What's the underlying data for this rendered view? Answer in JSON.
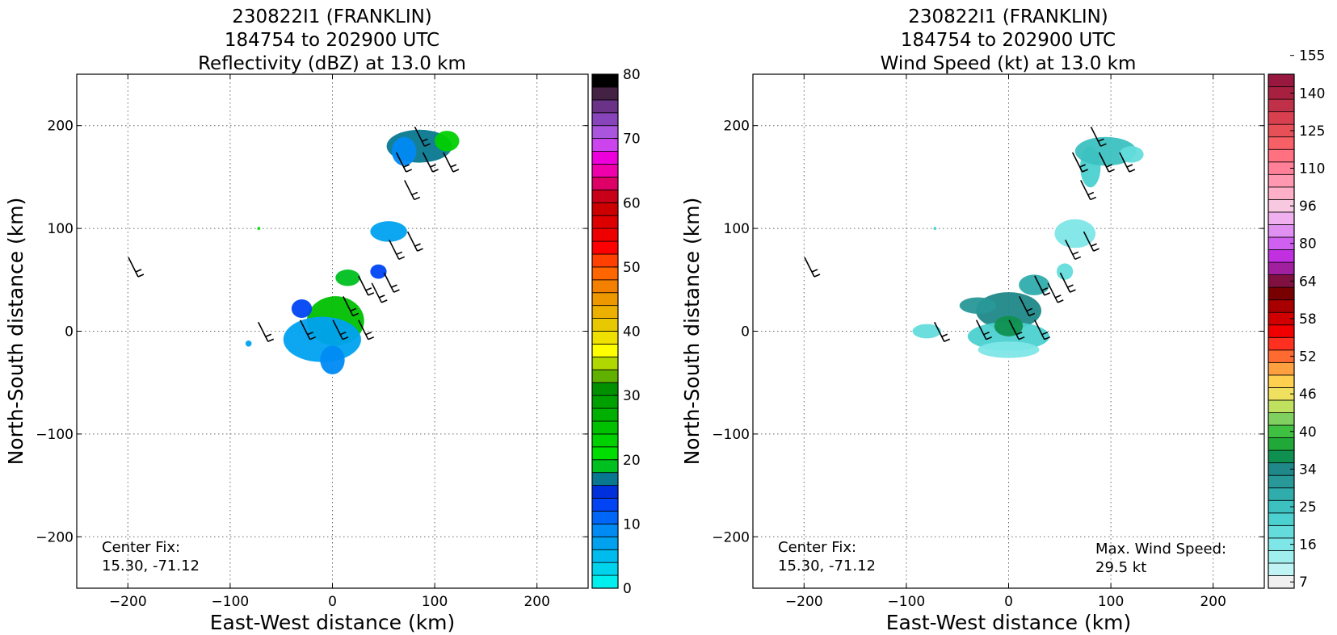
{
  "chart_data": [
    {
      "type": "heatmap",
      "title_lines": [
        "230822I1 (FRANKLIN)",
        "184754 to 202900 UTC",
        "Reflectivity (dBZ) at 13.0 km"
      ],
      "xlabel": "East-West distance (km)",
      "ylabel": "North-South distance (km)",
      "xlim": [
        -250,
        250
      ],
      "ylim": [
        -250,
        250
      ],
      "xticks": [
        -200,
        -100,
        0,
        100,
        200
      ],
      "yticks": [
        -200,
        -100,
        0,
        100,
        200
      ],
      "xtick_labels": [
        "−200",
        "−100",
        "0",
        "100",
        "200"
      ],
      "ytick_labels": [
        "−200",
        "−100",
        "0",
        "100",
        "200"
      ],
      "grid": true,
      "annotations": {
        "center_fix_label": "Center Fix:",
        "center_fix_value": "15.30, -71.12"
      },
      "colorbar": {
        "min": 0,
        "max": 80,
        "tick_values": [
          0,
          10,
          20,
          30,
          40,
          50,
          60,
          70,
          80
        ],
        "tick_labels": [
          "0",
          "10",
          "20",
          "30",
          "40",
          "50",
          "60",
          "70",
          "80"
        ],
        "colors": [
          "#00eeee",
          "#00d4ec",
          "#00bcee",
          "#00a2f0",
          "#008af4",
          "#0066f8",
          "#0044f4",
          "#0030dc",
          "#087890",
          "#00c020",
          "#00dd00",
          "#00d000",
          "#00c000",
          "#00b000",
          "#00a000",
          "#009000",
          "#60b000",
          "#b0d800",
          "#ffff00",
          "#f0e000",
          "#e8c800",
          "#ecb000",
          "#ee9800",
          "#f48000",
          "#ff6600",
          "#ff4000",
          "#ff0000",
          "#ee0000",
          "#dd0000",
          "#cc0000",
          "#c80018",
          "#dd0066",
          "#ee00aa",
          "#ee00dd",
          "#cc44ee",
          "#aa55dd",
          "#8844bb",
          "#6a3388",
          "#442244",
          "#000000"
        ]
      },
      "echo_regions": [
        {
          "cx": 3,
          "cy": 10,
          "rx": 28,
          "ry": 24,
          "level": 12
        },
        {
          "cx": -10,
          "cy": -8,
          "rx": 38,
          "ry": 22,
          "level": 3
        },
        {
          "cx": 0,
          "cy": -28,
          "rx": 12,
          "ry": 14,
          "level": 4
        },
        {
          "cx": -30,
          "cy": 22,
          "rx": 10,
          "ry": 9,
          "level": 6
        },
        {
          "cx": 15,
          "cy": 52,
          "rx": 12,
          "ry": 8,
          "level": 9
        },
        {
          "cx": 45,
          "cy": 58,
          "rx": 8,
          "ry": 7,
          "level": 6
        },
        {
          "cx": 55,
          "cy": 97,
          "rx": 18,
          "ry": 10,
          "level": 3
        },
        {
          "cx": 85,
          "cy": 180,
          "rx": 32,
          "ry": 16,
          "level": 8
        },
        {
          "cx": 112,
          "cy": 185,
          "rx": 12,
          "ry": 10,
          "level": 11
        },
        {
          "cx": 70,
          "cy": 175,
          "rx": 12,
          "ry": 14,
          "level": 4
        },
        {
          "cx": -82,
          "cy": -12,
          "rx": 3,
          "ry": 3,
          "level": 3
        },
        {
          "cx": -72,
          "cy": 100,
          "rx": 1.5,
          "ry": 1.5,
          "level": 10
        }
      ],
      "wind_barbs": [
        {
          "x": -190,
          "y": 53
        },
        {
          "x": -63,
          "y": -10
        },
        {
          "x": -22,
          "y": -8
        },
        {
          "x": 10,
          "y": -8
        },
        {
          "x": 35,
          "y": -8
        },
        {
          "x": 20,
          "y": 15
        },
        {
          "x": 35,
          "y": 35
        },
        {
          "x": 48,
          "y": 28
        },
        {
          "x": 60,
          "y": 38
        },
        {
          "x": 65,
          "y": 70
        },
        {
          "x": 83,
          "y": 78
        },
        {
          "x": 80,
          "y": 128
        },
        {
          "x": 72,
          "y": 155
        },
        {
          "x": 98,
          "y": 155
        },
        {
          "x": 118,
          "y": 155
        },
        {
          "x": 90,
          "y": 180
        }
      ]
    },
    {
      "type": "heatmap",
      "title_lines": [
        "230822I1 (FRANKLIN)",
        "184754 to 202900 UTC",
        "Wind Speed (kt) at 13.0 km"
      ],
      "xlabel": "East-West distance (km)",
      "ylabel": "North-South distance (km)",
      "xlim": [
        -250,
        250
      ],
      "ylim": [
        -250,
        250
      ],
      "xticks": [
        -200,
        -100,
        0,
        100,
        200
      ],
      "yticks": [
        -200,
        -100,
        0,
        100,
        200
      ],
      "xtick_labels": [
        "−200",
        "−100",
        "0",
        "100",
        "200"
      ],
      "ytick_labels": [
        "−200",
        "−100",
        "0",
        "100",
        "200"
      ],
      "grid": true,
      "annotations": {
        "center_fix_label": "Center Fix:",
        "center_fix_value": "15.30, -71.12",
        "max_wind_label": "Max. Wind Speed:",
        "max_wind_value": "29.5 kt"
      },
      "colorbar": {
        "tick_labels": [
          "7",
          "16",
          "25",
          "34",
          "40",
          "46",
          "52",
          "58",
          "64",
          "80",
          "96",
          "110",
          "125",
          "140",
          "155"
        ],
        "colors": [
          "#f0f0f0",
          "#c0f4f4",
          "#a0eeee",
          "#7ee6e6",
          "#64dcdc",
          "#4cd0d0",
          "#3cc0c0",
          "#30acac",
          "#289898",
          "#208888",
          "#109050",
          "#20a838",
          "#40c040",
          "#80d060",
          "#c0e060",
          "#f0e060",
          "#ffd050",
          "#ffa040",
          "#ff6a30",
          "#ff3020",
          "#f00000",
          "#d00000",
          "#a80000",
          "#780000",
          "#801040",
          "#a020a0",
          "#c030e0",
          "#d060f0",
          "#e090f0",
          "#f0b0f0",
          "#f8c8e0",
          "#ffb0c8",
          "#ff98b0",
          "#ff8098",
          "#ff7080",
          "#f86068",
          "#e85058",
          "#d84050",
          "#c03048",
          "#a82040",
          "#981840"
        ]
      },
      "wind_regions": [
        {
          "cx": 0,
          "cy": 20,
          "rx": 32,
          "ry": 18,
          "level": 9
        },
        {
          "cx": -30,
          "cy": 25,
          "rx": 18,
          "ry": 8,
          "level": 8
        },
        {
          "cx": 0,
          "cy": -5,
          "rx": 40,
          "ry": 14,
          "level": 5
        },
        {
          "cx": -80,
          "cy": 0,
          "rx": 14,
          "ry": 7,
          "level": 4
        },
        {
          "cx": 0,
          "cy": -18,
          "rx": 30,
          "ry": 8,
          "level": 3
        },
        {
          "cx": 25,
          "cy": 45,
          "rx": 15,
          "ry": 10,
          "level": 7
        },
        {
          "cx": 55,
          "cy": 58,
          "rx": 8,
          "ry": 8,
          "level": 4
        },
        {
          "cx": 65,
          "cy": 95,
          "rx": 20,
          "ry": 14,
          "level": 3
        },
        {
          "cx": 80,
          "cy": 160,
          "rx": 10,
          "ry": 20,
          "level": 5
        },
        {
          "cx": 95,
          "cy": 175,
          "rx": 30,
          "ry": 14,
          "level": 6
        },
        {
          "cx": 120,
          "cy": 172,
          "rx": 12,
          "ry": 8,
          "level": 4
        },
        {
          "cx": 0,
          "cy": 5,
          "rx": 14,
          "ry": 10,
          "level": 10
        },
        {
          "cx": -72,
          "cy": 100,
          "rx": 1.5,
          "ry": 1.5,
          "level": 5
        }
      ],
      "wind_barbs": [
        {
          "x": -190,
          "y": 53
        },
        {
          "x": -63,
          "y": -10
        },
        {
          "x": -22,
          "y": -8
        },
        {
          "x": 10,
          "y": -8
        },
        {
          "x": 35,
          "y": -8
        },
        {
          "x": 20,
          "y": 15
        },
        {
          "x": 35,
          "y": 35
        },
        {
          "x": 48,
          "y": 28
        },
        {
          "x": 60,
          "y": 38
        },
        {
          "x": 65,
          "y": 70
        },
        {
          "x": 83,
          "y": 78
        },
        {
          "x": 80,
          "y": 128
        },
        {
          "x": 72,
          "y": 155
        },
        {
          "x": 98,
          "y": 155
        },
        {
          "x": 118,
          "y": 155
        },
        {
          "x": 90,
          "y": 180
        }
      ]
    }
  ]
}
